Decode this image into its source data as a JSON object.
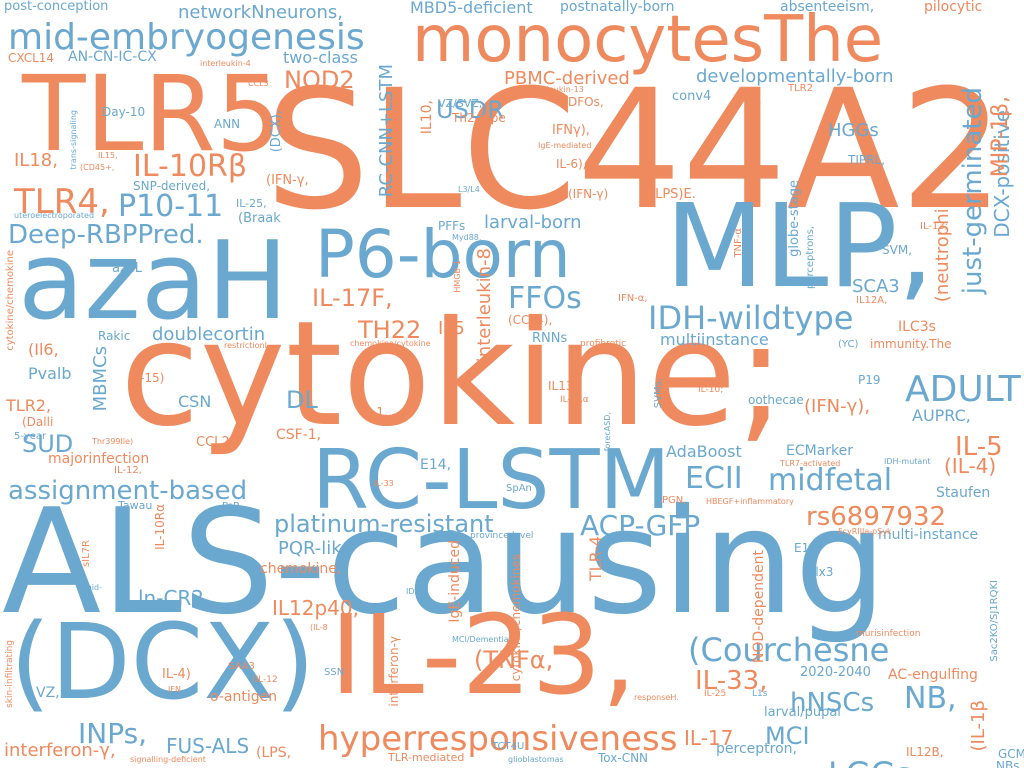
{
  "colors": {
    "orange": "#ee8a5e",
    "blue": "#6aa8cf",
    "background": "#ffffff"
  },
  "words": {
    "w01": "SLC44A2",
    "w02": "ALS-causing",
    "w03": "cytokine;",
    "w04": "MLP,",
    "w05": "monocytesThe",
    "w06": "azaH",
    "w07": "TLR5",
    "w08": "RC-LSTM",
    "w09": "(DCX)",
    "w10": "IL-23,",
    "w11": "P6-born",
    "w12": "mid-embryogenesis",
    "w13": "hyperresponsiveness",
    "w14": "IDH-wildtype",
    "w15": "(Courchesne",
    "w16": "ADULT",
    "w17": "assignment-based",
    "w18": "Deep-RBPPred.",
    "w19": "TLR4,",
    "w20": "P10-11",
    "w21": "IL-10Rβ",
    "w22": "FFOs",
    "w23": "ECII",
    "w24": "midfetal",
    "w25": "ACP-GFP",
    "w26": "platinum-resistant",
    "w27": "rs6897932",
    "w28": "LGGs",
    "w29": "NB,",
    "w30": "IL-33,",
    "w31": "hNSCs",
    "w32": "INPs,",
    "w33": "IL12p40,",
    "w34": "ln-CR2",
    "w35": "IL-17F,",
    "w36": "TH22",
    "w37": "NOD2",
    "w38": "USDR",
    "w39": "just-germinated",
    "w40": "DCX-positive",
    "w41": "MIP-1β,",
    "w42": "SUD",
    "w43": "DL",
    "w44": "(TNFα,",
    "w45": "MCI",
    "w46": "IL-17",
    "w47": "FUS-ALS",
    "w48": "interferon-γ,",
    "w49": "IL-5",
    "w50": "(IL-4)",
    "w51": "networkNneurons,",
    "w52": "MBD5-deficient",
    "w53": "postnatally-born",
    "w54": "absenteeism,",
    "w55": "pilocytic",
    "w56": "post-conception",
    "w57": "AN-CN-IC-CX",
    "w58": "CXCL14",
    "w59": "two-class",
    "w60": "PBMC-derived",
    "w61": "developmentally-born",
    "w62": "RC-CNN+LSTM",
    "w63": "larval-born",
    "w64": "doublecortin",
    "w65": "SCA3",
    "w66": "AdaBoost",
    "w67": "ECMarker",
    "w68": "multi-instance",
    "w69": "Staufen",
    "w70": "PQR-like",
    "w71": "chemokine,",
    "w72": "E14,",
    "w73": "AUPRC,",
    "w74": "(IFN-γ),",
    "w75": "multiinstance",
    "w76": "(neutrophils",
    "w77": "MBMCs",
    "w78": "IL18,",
    "w79": "HGGs",
    "w80": "interleukin-8",
    "w81": "IL5",
    "w82": "TLR-4",
    "w83": "(Il6,",
    "w84": "Pvalb",
    "w85": "TLR2,",
    "w86": "CSN",
    "w87": "majorinfection",
    "w88": "CSF-1,",
    "w89": "CCL20",
    "w90": "IL10,",
    "w91": "(IFN-γ,",
    "w92": "IFNγ),",
    "w93": "IL-6),",
    "w94": "(LPS)E.",
    "w95": "Day-10",
    "w96": "ANN",
    "w97": "(DCX),",
    "w98": "SNP-derived,",
    "w99": "IL-25,",
    "w100": "(Braak",
    "w101": "uteroelectroporated",
    "w102": "azaL",
    "w103": "Rakic",
    "w104": "cytokine/chemokine",
    "w105": "IL-15)",
    "w106": "(Dalli",
    "w107": "5-year",
    "w108": "IL-12,",
    "w109": "Tawau",
    "w110": "PsP",
    "w111": "IL-10Rα",
    "w112": "sIL7R",
    "w113": "mid-",
    "w114": "skin-infiltrating",
    "w115": "IL-4)",
    "w116": "SAA3",
    "w117": "IFN",
    "w118": "(IL-12",
    "w119": "(IL-8",
    "w120": "o-antigen",
    "w121": "VZ,",
    "w122": "(LPS,",
    "w123": "signalling-deficient",
    "w124": "SSN",
    "w125": "TLR-mediated",
    "w126": "glioblastomas",
    "w127": "Tox-CNN",
    "w128": "TCT4U",
    "w129": "perceptron,",
    "w130": "larval/pupal",
    "w131": "2020-2040",
    "w132": "AC-engulfing",
    "w133": "murisinfection",
    "w134": "IL12B,",
    "w135": "(IL-1β",
    "w136": "GCM",
    "w137": "NBs",
    "w138": "Sac2KO/SJ1RQKI",
    "w139": "Tlx3",
    "w140": "E12,",
    "w141": "NOD-dependent",
    "w142": "FcγRIIIa-pSyk",
    "w143": "HBEGF+inflammatory",
    "w144": "PGN,",
    "w145": "province-level",
    "w146": "IgE-induced",
    "w147": "IDH",
    "w148": "cytokine/chemokines",
    "w149": "interferon-γ",
    "w150": "MCI/Dementia",
    "w151": "responseH.",
    "w152": "IL-25",
    "w153": "L1s",
    "w154": "SpAn",
    "w155": "TLR7-activated",
    "w156": "IDH-mutant",
    "w157": "IL-33",
    "w158": "Thr399Ile)",
    "w159": "forecASD,",
    "w160": "IL-4Rα",
    "w161": "IL13",
    "w162": "SVMs,",
    "w163": "IL-10;",
    "w164": "oothecae",
    "w165": "P19",
    "w166": "immunity.The",
    "w167": "(YC)",
    "w168": "ILC3s",
    "w169": "IL12A,",
    "w170": "IFN-α,",
    "w171": "profibrotic",
    "w172": "RNNs",
    "w173": "chemokine/cytokine",
    "w174": "(CCL4),",
    "w175": "restrictionL.",
    "w176": "IL-1,",
    "w177": "perceptrons,",
    "w178": "globe-stage",
    "w179": "TNF-α",
    "w180": "SVM,",
    "w181": "IL-13;",
    "w182": "TIPRL,",
    "w183": "HMGB-1",
    "w184": "Myd88,",
    "w185": "PFFs",
    "w186": "L3/L4",
    "w187": "(IFN-γ)",
    "w188": "IgE-mediated",
    "w189": "Th2-type",
    "w190": "VZ/SVZ,",
    "w191": "interleukin-13",
    "w192": "DFOs,",
    "w193": "conv4",
    "w194": "pIgR",
    "w195": "TLR2",
    "w196": "CCL3",
    "w197": "interleukin-4",
    "w198": "IL15,",
    "w199": "(CD45+,",
    "w200": "trans-signaling"
  }
}
